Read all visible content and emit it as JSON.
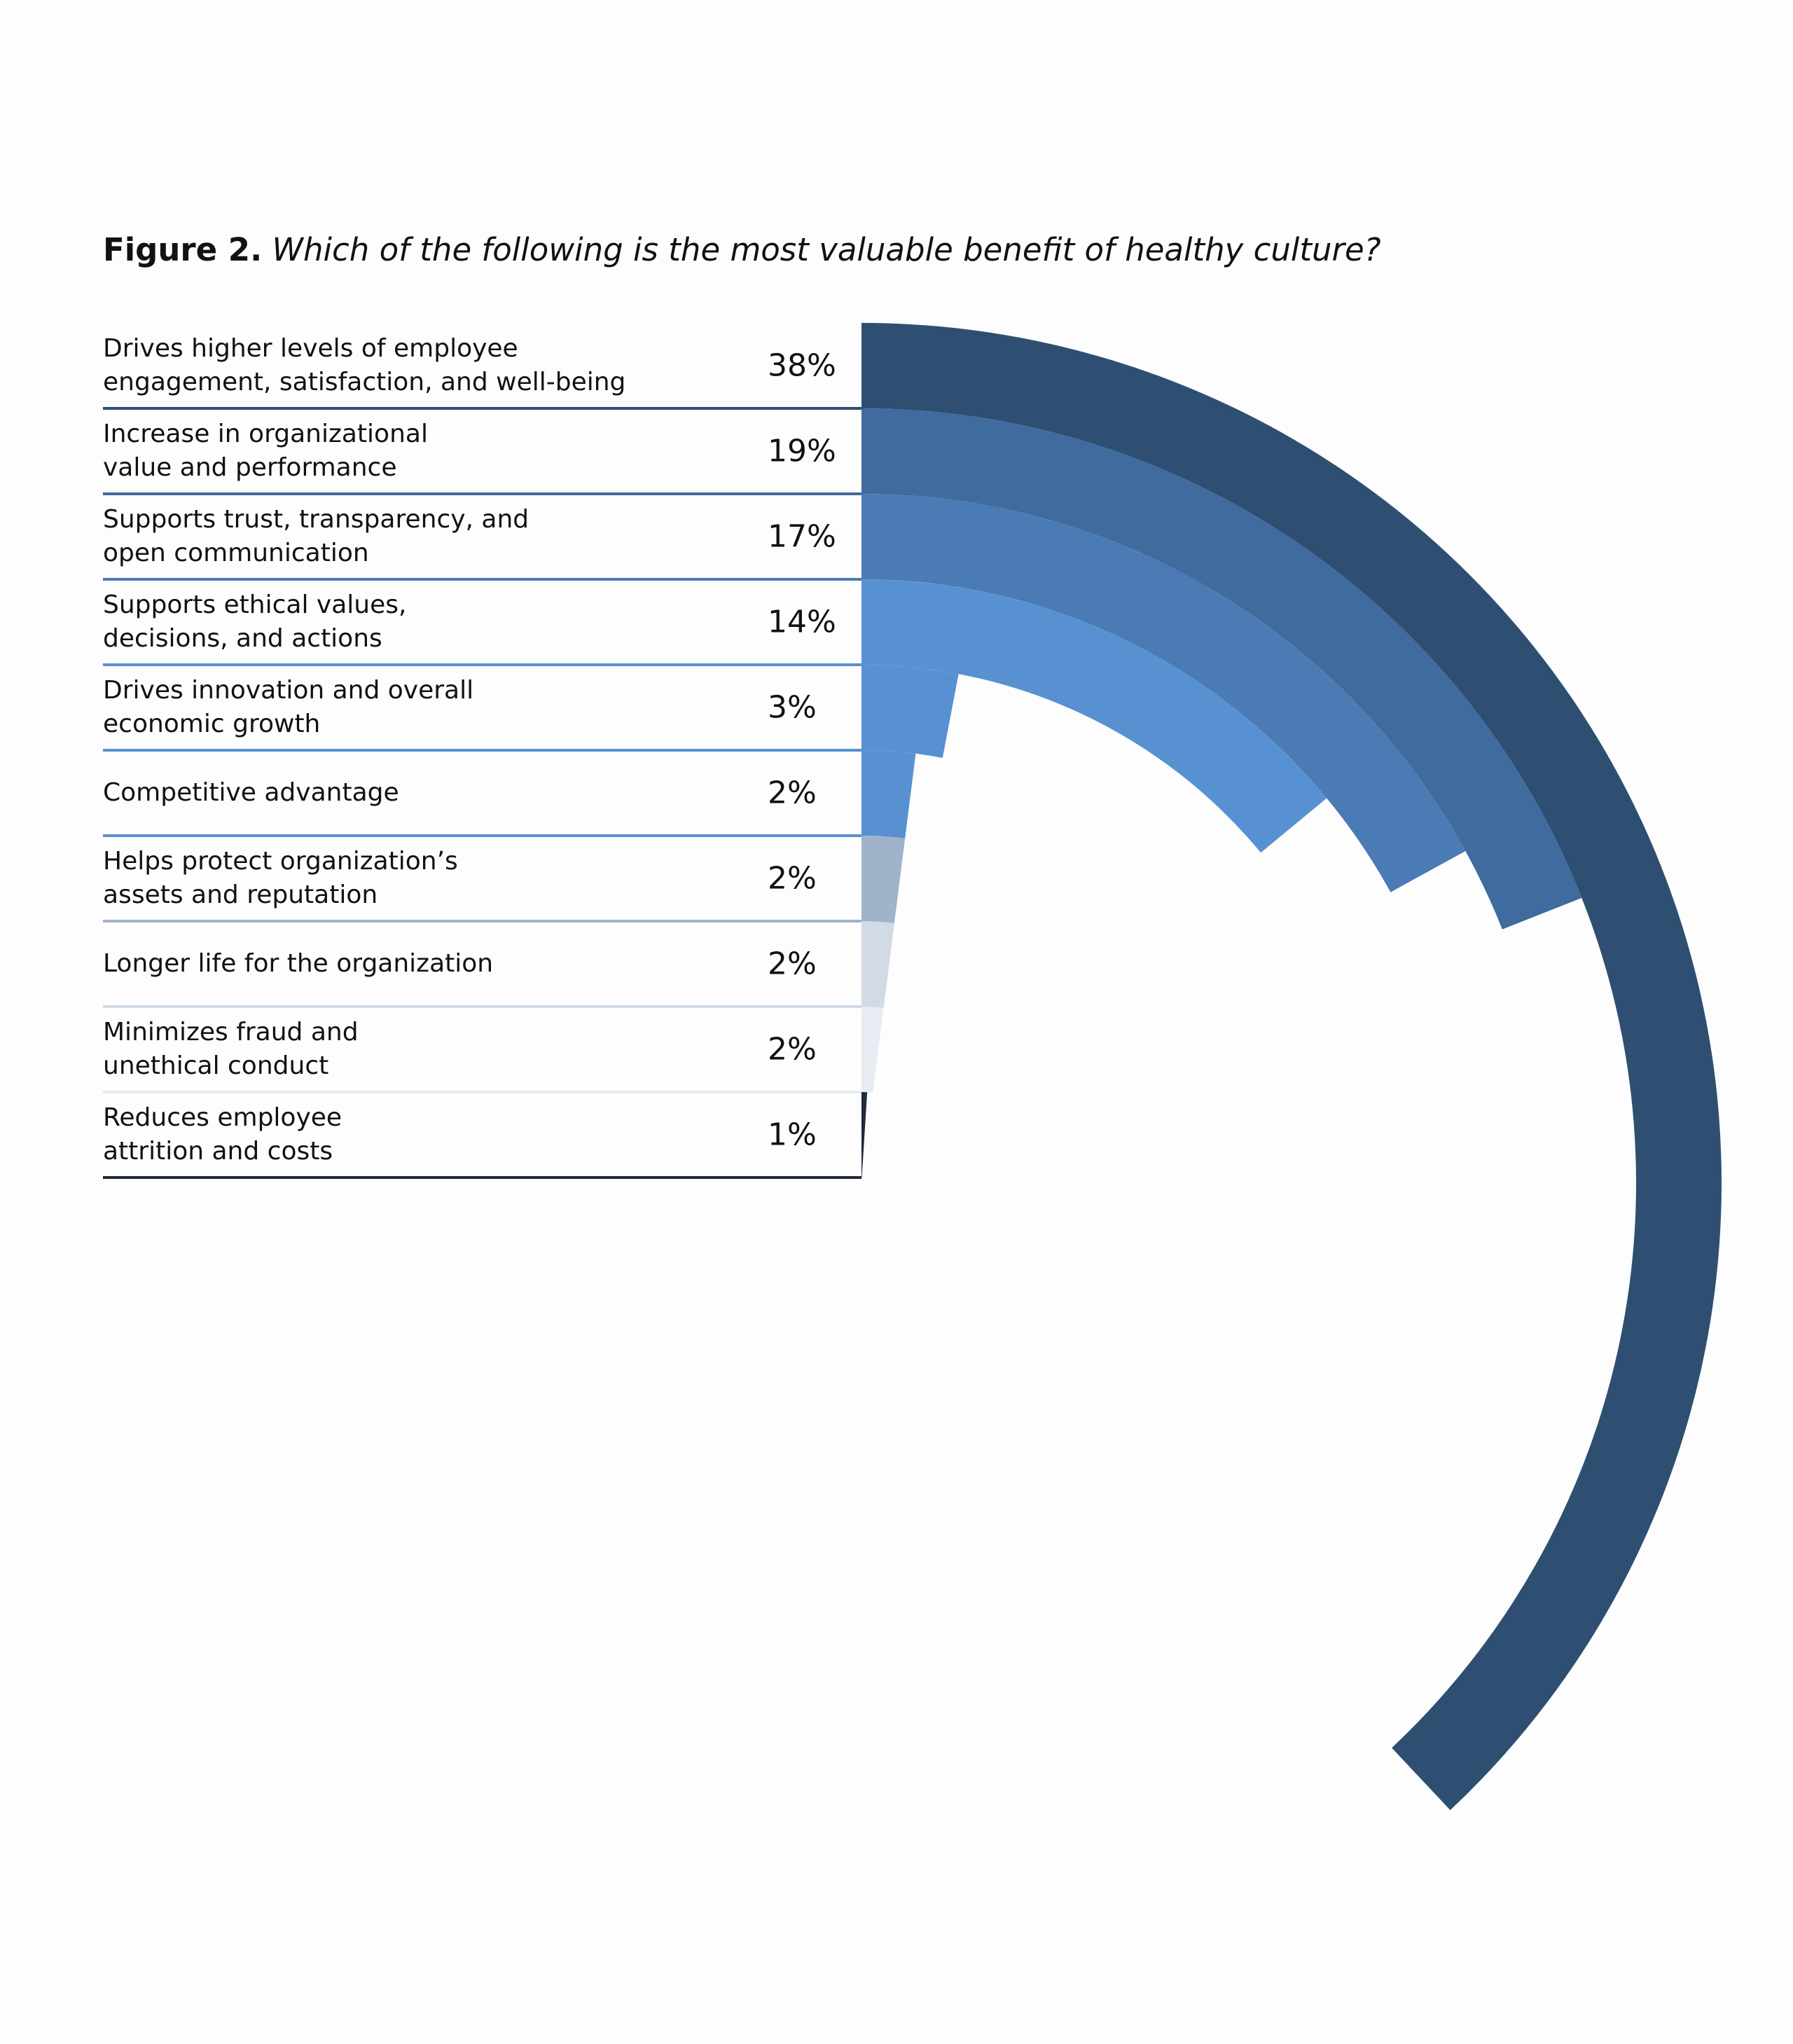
{
  "chart_data": {
    "type": "radial-bar",
    "title": "Figure 2.",
    "subtitle": "Which of the following is the most valuable benefit of healthy culture?",
    "categories": [
      "Drives higher levels of employee\nengagement, satisfaction, and well-being",
      "Increase in organizational\nvalue and performance",
      "Supports trust, transparency, and\nopen communication",
      "Supports ethical values,\ndecisions, and actions",
      "Drives innovation and overall\neconomic growth",
      "Competitive advantage",
      "Helps protect organization’s\nassets and reputation",
      "Longer life for the organization",
      "Minimizes fraud and\nunethical conduct",
      "Reduces employee\nattrition and costs"
    ],
    "values": [
      38,
      19,
      17,
      14,
      3,
      2,
      2,
      2,
      2,
      1
    ],
    "value_labels": [
      "38%",
      "19%",
      "17%",
      "14%",
      "3%",
      "2%",
      "2%",
      "2%",
      "2%",
      "1%"
    ],
    "colors": [
      "#2e4f72",
      "#3f6b9e",
      "#4a7bb5",
      "#5891d2",
      "#5891d2",
      "#5891d2",
      "#a0b3ca",
      "#d1dae5",
      "#e8ecf2",
      "#1f2a3a"
    ]
  }
}
